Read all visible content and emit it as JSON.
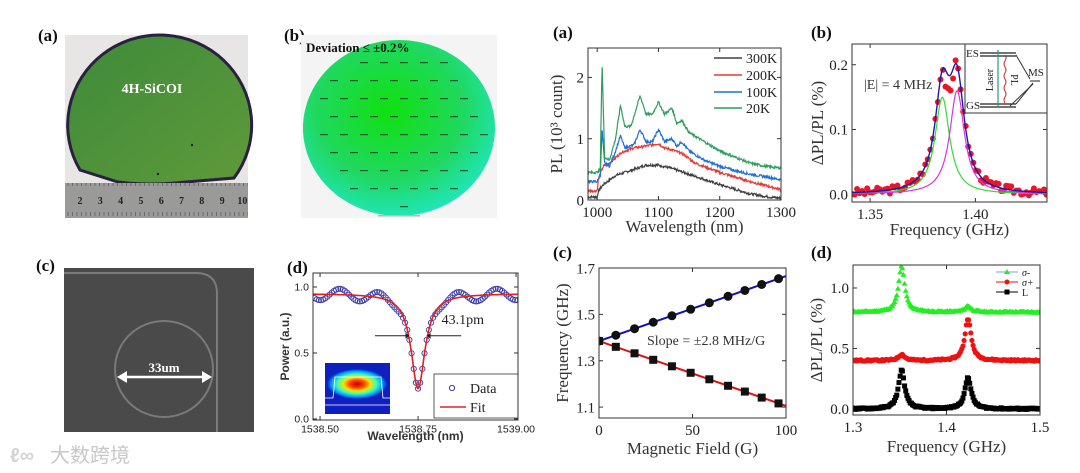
{
  "panel_labels": {
    "photo_a": "(a)",
    "photo_b": "(b)",
    "photo_c": "(c)",
    "photo_d": "(d)",
    "chart_a": "(a)",
    "chart_b": "(b)",
    "chart_c": "(c)",
    "chart_d": "(d)"
  },
  "photos": {
    "wafer_label": "4H-SiCOI",
    "ruler_numbers": [
      "2",
      "3",
      "4",
      "5",
      "6",
      "7",
      "8",
      "9",
      "10"
    ],
    "thickness_map_title": "Deviation ≤ ±0.2%",
    "ring_diameter_label": "33um"
  },
  "watermark": {
    "text": "大数跨境"
  },
  "colors": {
    "k300": "#404040",
    "k200": "#e53935",
    "k100": "#1e6fd9",
    "k20": "#2e9e5e",
    "fit_blue": "#1a1aa8",
    "dots_red": "#e8162a",
    "comp_green": "#33dd33",
    "comp_magenta": "#dd33dd",
    "up_line": "#1010c0",
    "down_line": "#e01010",
    "sigma_minus": "#22ee22",
    "sigma_plus": "#ee1111",
    "linear": "#000000",
    "transmission_data": "#3a3aa8",
    "transmission_fit": "#e02020"
  },
  "chart_data": [
    {
      "id": "transmission",
      "type": "scatter",
      "title": "",
      "xlabel": "Wavelength (nm)",
      "ylabel": "Power (a.u.)",
      "xlim": [
        1538.482,
        1539.005
      ],
      "ylim": [
        -0.008,
        1.106
      ],
      "xticks": [
        1538.5,
        1538.75,
        1539.0
      ],
      "xtick_labels": [
        "1538.50",
        "1538.75",
        "1539.00"
      ],
      "yticks": [
        0.0,
        0.5,
        1.0
      ],
      "ytick_labels": [
        "0.0",
        "0.5",
        "1.0"
      ],
      "legend": [
        "Data",
        "Fit"
      ],
      "legend_position": "bottom-right",
      "annotation": "43.1pm",
      "resonance": {
        "center_nm": 1538.75,
        "baseline": 0.95,
        "dip_min": 0.23,
        "fwhm_nm": 0.0431
      },
      "data_ripple": {
        "amplitude": 0.045,
        "period_nm": 0.1
      },
      "data_step_nm": 0.0055,
      "inset": "mode profile"
    },
    {
      "id": "pl_spectra",
      "type": "line",
      "xlabel": "Wavelength (nm)",
      "ylabel": "PL (10³ count)",
      "xlim": [
        985,
        1300
      ],
      "ylim": [
        0,
        2.48
      ],
      "xticks": [
        1000,
        1100,
        1200,
        1300
      ],
      "xtick_labels": [
        "1000",
        "1100",
        "1200",
        "1300"
      ],
      "yticks": [
        0,
        1,
        2
      ],
      "ytick_labels": [
        "0",
        "1",
        "2"
      ],
      "legend_position": "top-right",
      "series": [
        {
          "name": "300K",
          "color_key": "k300",
          "x": [
            985,
            1000,
            1002,
            1010,
            1030,
            1060,
            1080,
            1100,
            1120,
            1150,
            1200,
            1250,
            1280,
            1300
          ],
          "y": [
            0.05,
            0.05,
            0.15,
            0.25,
            0.4,
            0.5,
            0.57,
            0.57,
            0.52,
            0.42,
            0.25,
            0.1,
            0.05,
            0.03
          ]
        },
        {
          "name": "200K",
          "color_key": "k200",
          "x": [
            985,
            1000,
            1002,
            1010,
            1020,
            1040,
            1060,
            1080,
            1100,
            1110,
            1122,
            1140,
            1160,
            1200,
            1250,
            1300
          ],
          "y": [
            0.15,
            0.15,
            0.35,
            0.55,
            0.6,
            0.78,
            0.85,
            0.88,
            0.92,
            0.85,
            0.82,
            0.75,
            0.6,
            0.45,
            0.3,
            0.17
          ]
        },
        {
          "name": "100K",
          "color_key": "k100",
          "x": [
            985,
            1000,
            1005,
            1008,
            1012,
            1020,
            1030,
            1038,
            1045,
            1060,
            1070,
            1080,
            1090,
            1100,
            1110,
            1122,
            1130,
            1138,
            1150,
            1175,
            1200,
            1225,
            1250,
            1275,
            1300
          ],
          "y": [
            0.3,
            0.3,
            0.4,
            1.15,
            0.6,
            0.55,
            0.8,
            1.05,
            0.85,
            0.9,
            1.15,
            0.95,
            0.95,
            1.15,
            0.95,
            1.0,
            0.88,
            0.95,
            0.8,
            0.65,
            0.55,
            0.48,
            0.42,
            0.38,
            0.33
          ]
        },
        {
          "name": "20K",
          "color_key": "k20",
          "x": [
            985,
            1000,
            1005,
            1008,
            1012,
            1020,
            1030,
            1038,
            1045,
            1055,
            1070,
            1080,
            1090,
            1100,
            1110,
            1122,
            1130,
            1138,
            1150,
            1175,
            1200,
            1225,
            1250,
            1275,
            1300
          ],
          "y": [
            0.45,
            0.45,
            0.5,
            2.25,
            0.7,
            0.65,
            1.0,
            1.55,
            1.2,
            1.2,
            1.7,
            1.4,
            1.4,
            1.6,
            1.4,
            1.5,
            1.25,
            1.3,
            1.1,
            0.95,
            0.8,
            0.7,
            0.6,
            0.55,
            0.52
          ]
        }
      ]
    },
    {
      "id": "odmr_split",
      "type": "scatter",
      "xlabel": "Frequency (GHz)",
      "ylabel": "ΔPL/PL (%)",
      "xlim": [
        1.3414,
        1.434
      ],
      "ylim": [
        -0.012,
        0.232
      ],
      "xticks": [
        1.35,
        1.4
      ],
      "xtick_labels": [
        "1.35",
        "1.40"
      ],
      "yticks": [
        0.0,
        0.1,
        0.2
      ],
      "ytick_labels": [
        "0.0",
        "0.1",
        "0.2"
      ],
      "annotation": "|E| = 4 MHz",
      "components": [
        {
          "name": "lower",
          "color_key": "comp_green",
          "center": 1.3843,
          "amplitude": 0.15,
          "hwhm": 0.0042
        },
        {
          "name": "upper",
          "color_key": "comp_magenta",
          "center": 1.3913,
          "amplitude": 0.16,
          "hwhm": 0.0042
        }
      ],
      "data_step_ghz": 0.0012,
      "inset": {
        "levels": [
          "ES",
          "GS",
          "MS"
        ],
        "arrows": [
          "Laser",
          "PL"
        ]
      }
    },
    {
      "id": "zeeman",
      "type": "scatter",
      "xlabel": "Magnetic Field (G)",
      "ylabel": "Frequency (GHz)",
      "xlim": [
        0,
        100
      ],
      "ylim": [
        1.053,
        1.7
      ],
      "xticks": [
        0,
        50,
        100
      ],
      "xtick_labels": [
        "0",
        "50",
        "100"
      ],
      "yticks": [
        1.1,
        1.3,
        1.5,
        1.7
      ],
      "ytick_labels": [
        "1.1",
        "1.3",
        "1.5",
        "1.7"
      ],
      "annotation": "Slope = ±2.8 MHz/G",
      "x": [
        0,
        9,
        19,
        29,
        39,
        49,
        59,
        69,
        78,
        87,
        96
      ],
      "series": [
        {
          "name": "upper",
          "marker": "circle",
          "color_key": "up_line",
          "intercept": 1.385,
          "slope": 0.0028,
          "y": [
            1.385,
            1.41,
            1.438,
            1.466,
            1.494,
            1.522,
            1.55,
            1.578,
            1.603,
            1.629,
            1.654
          ]
        },
        {
          "name": "lower",
          "marker": "square",
          "color_key": "down_line",
          "intercept": 1.385,
          "slope": -0.0028,
          "y": [
            1.385,
            1.36,
            1.332,
            1.304,
            1.276,
            1.248,
            1.22,
            1.192,
            1.167,
            1.141,
            1.116
          ]
        }
      ]
    },
    {
      "id": "polarization",
      "type": "line",
      "xlabel": "Frequency (GHz)",
      "ylabel": "ΔPL/PL (%)",
      "xlim": [
        1.3,
        1.5
      ],
      "ylim": [
        -0.05,
        1.19
      ],
      "xticks": [
        1.3,
        1.4,
        1.5
      ],
      "xtick_labels": [
        "1.3",
        "1.4",
        "1.5"
      ],
      "yticks": [
        0.0,
        0.5,
        1.0
      ],
      "ytick_labels": [
        "0.0",
        "0.5",
        "1.0"
      ],
      "legend_position": "top-right",
      "series": [
        {
          "name": "σ-",
          "marker": "triangle",
          "color_key": "sigma_minus",
          "offset": 0.8,
          "peaks": [
            {
              "center": 1.352,
              "amplitude": 0.38,
              "hwhm": 0.004
            },
            {
              "center": 1.423,
              "amplitude": 0.05,
              "hwhm": 0.004
            }
          ]
        },
        {
          "name": "σ+",
          "marker": "circle",
          "color_key": "sigma_plus",
          "offset": 0.4,
          "peaks": [
            {
              "center": 1.352,
              "amplitude": 0.05,
              "hwhm": 0.004
            },
            {
              "center": 1.423,
              "amplitude": 0.35,
              "hwhm": 0.004
            }
          ]
        },
        {
          "name": "L",
          "marker": "square",
          "color_key": "linear",
          "offset": 0.0,
          "peaks": [
            {
              "center": 1.352,
              "amplitude": 0.32,
              "hwhm": 0.004
            },
            {
              "center": 1.423,
              "amplitude": 0.26,
              "hwhm": 0.004
            }
          ]
        }
      ]
    }
  ]
}
